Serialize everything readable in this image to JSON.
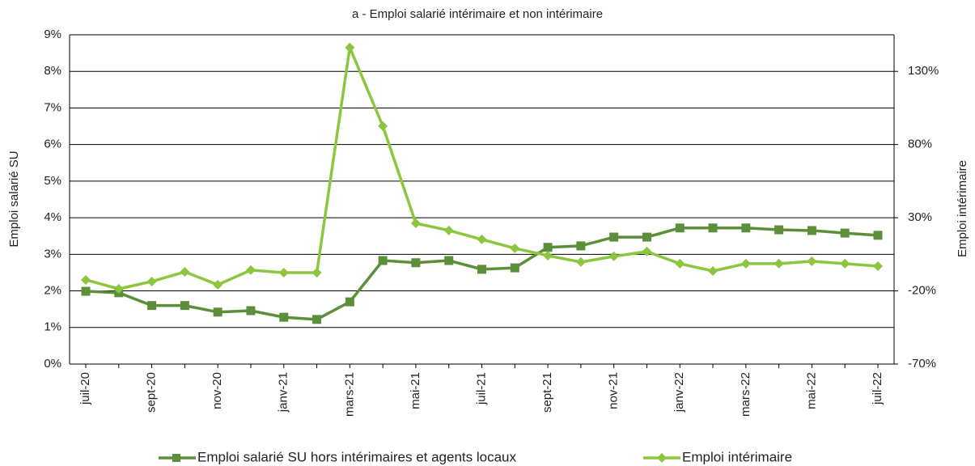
{
  "chart_data": {
    "type": "line",
    "title": "a - Emploi salarié intérimaire et non intérimaire",
    "y_label": "Emploi salarié SU",
    "y2_label": "Emploi intérimaire",
    "categories": [
      "juil-20",
      null,
      "sept-20",
      null,
      "nov-20",
      null,
      "janv-21",
      null,
      "mars-21",
      null,
      "mai-21",
      null,
      "juil-21",
      null,
      "sept-21",
      null,
      "nov-21",
      null,
      "janv-22",
      null,
      "mars-22",
      null,
      "mai-22",
      null,
      "juil-22"
    ],
    "series": [
      {
        "name": "Emploi salarié SU hors intérimaires et agents locaux",
        "color": "#5b8f3a",
        "marker": "square",
        "values": [
          1.99,
          1.95,
          1.6,
          1.6,
          1.42,
          1.46,
          1.28,
          1.22,
          1.7,
          2.83,
          2.77,
          2.83,
          2.59,
          2.63,
          3.19,
          3.23,
          3.47,
          3.47,
          3.72,
          3.72,
          3.72,
          3.67,
          3.65,
          3.58,
          3.52
        ]
      },
      {
        "name": "Emploi intérimaire",
        "color": "#8cc63f",
        "marker": "diamond",
        "axis": "y2",
        "values": [
          -12.5,
          -18.6,
          -13.6,
          -7,
          -15.8,
          -5.8,
          -7.5,
          -7.5,
          146.3,
          92.6,
          26.2,
          21.3,
          15.2,
          9.1,
          4.1,
          -0.3,
          3.6,
          6.9,
          -1.4,
          -6.4,
          -1.4,
          -1.4,
          0.2,
          -1.4,
          -3.1
        ]
      }
    ],
    "ylim": [
      0,
      9
    ],
    "yticks": [
      {
        "value": 0,
        "label": "0%"
      },
      {
        "value": 1,
        "label": "1%"
      },
      {
        "value": 2,
        "label": "2%"
      },
      {
        "value": 3,
        "label": "3%"
      },
      {
        "value": 4,
        "label": "4%"
      },
      {
        "value": 5,
        "label": "5%"
      },
      {
        "value": 6,
        "label": "6%"
      },
      {
        "value": 7,
        "label": "7%"
      },
      {
        "value": 8,
        "label": "8%"
      },
      {
        "value": 9,
        "label": "9%"
      }
    ],
    "y2lim": [
      -70,
      155
    ],
    "y2ticks": [
      {
        "value": -70,
        "label": "-70%"
      },
      {
        "value": -20,
        "label": "-20%"
      },
      {
        "value": 30,
        "label": "30%"
      },
      {
        "value": 80,
        "label": "80%"
      },
      {
        "value": 130,
        "label": "130%"
      }
    ],
    "grid": true,
    "legend": "bottom"
  }
}
